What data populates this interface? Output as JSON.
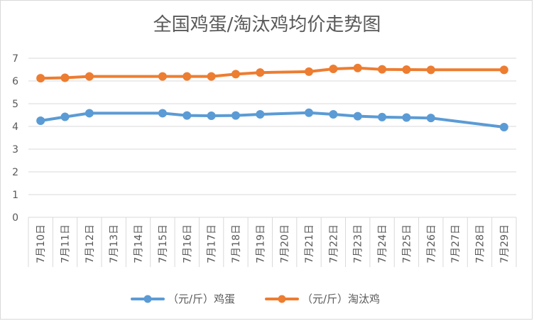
{
  "chart_data": {
    "type": "line",
    "title": "全国鸡蛋/淘汰鸡均价走势图",
    "categories": [
      "7月10日",
      "7月11日",
      "7月12日",
      "7月13日",
      "7月14日",
      "7月15日",
      "7月16日",
      "7月17日",
      "7月18日",
      "7月19日",
      "7月20日",
      "7月21日",
      "7月22日",
      "7月23日",
      "7月24日",
      "7月25日",
      "7月26日",
      "7月27日",
      "7月28日",
      "7月29日"
    ],
    "ylim": [
      0,
      7
    ],
    "yticks": [
      "0",
      "1",
      "2",
      "3",
      "4",
      "5",
      "6",
      "7"
    ],
    "grid": true,
    "legend_position": "bottom",
    "series": [
      {
        "name": "（元/斤）鸡蛋",
        "color": "#5B9BD5",
        "values": [
          4.25,
          4.42,
          4.58,
          null,
          null,
          4.58,
          4.48,
          4.47,
          4.48,
          4.53,
          null,
          4.6,
          4.53,
          4.45,
          4.41,
          4.39,
          4.37,
          null,
          null,
          3.97
        ]
      },
      {
        "name": "（元/斤）淘汰鸡",
        "color": "#ED7D31",
        "values": [
          6.12,
          6.14,
          6.2,
          null,
          null,
          6.2,
          6.2,
          6.2,
          6.3,
          6.37,
          null,
          6.41,
          6.53,
          6.57,
          6.51,
          6.5,
          6.49,
          null,
          null,
          6.49
        ]
      }
    ]
  }
}
